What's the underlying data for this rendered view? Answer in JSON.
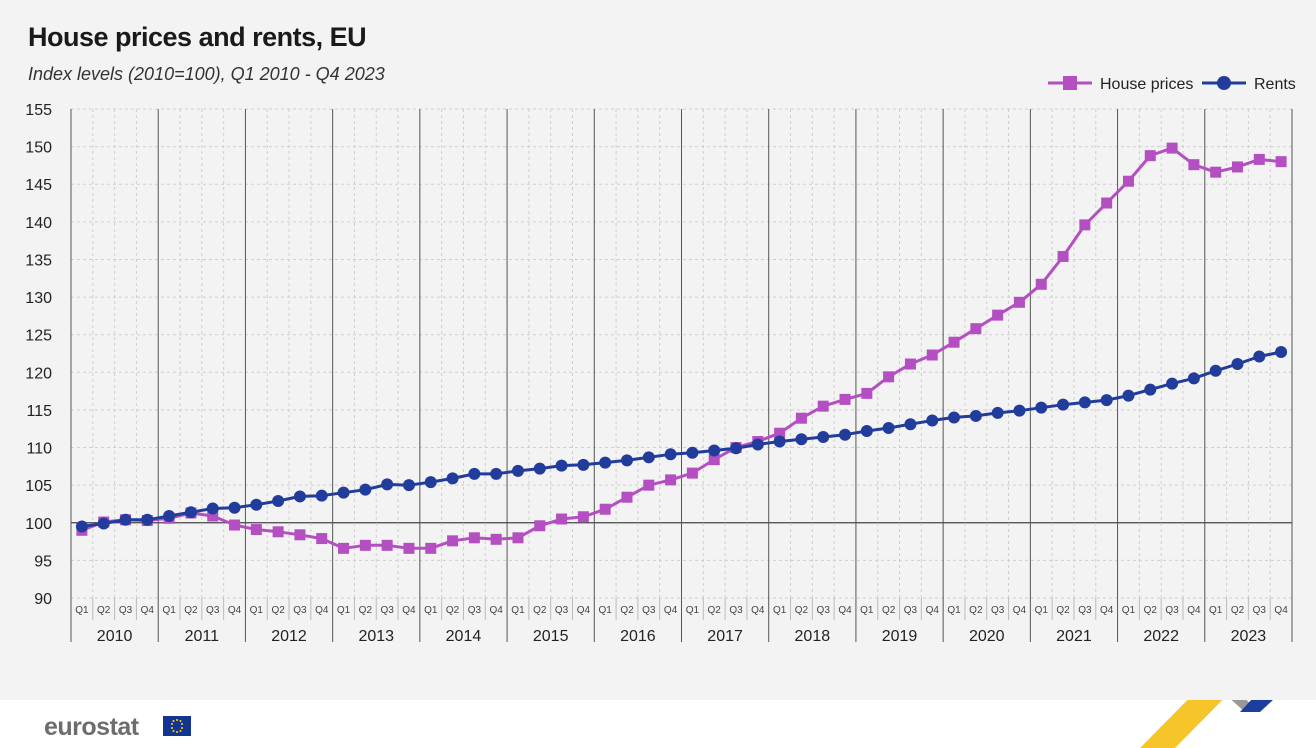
{
  "chart_data": {
    "type": "line",
    "title": "House prices and rents, EU",
    "subtitle": "Index levels (2010=100), Q1 2010 - Q4 2023",
    "ylim": [
      90,
      155
    ],
    "y_ticks": [
      "90",
      "95",
      "100",
      "105",
      "110",
      "115",
      "120",
      "125",
      "130",
      "135",
      "140",
      "145",
      "150",
      "155"
    ],
    "quarters": [
      "Q1",
      "Q2",
      "Q3",
      "Q4"
    ],
    "years": [
      "2010",
      "2011",
      "2012",
      "2013",
      "2014",
      "2015",
      "2016",
      "2017",
      "2018",
      "2019",
      "2020",
      "2021",
      "2022",
      "2023"
    ],
    "grid": true,
    "legend_position": "top-right",
    "series": [
      {
        "name": "House prices",
        "color": "#b44fc2",
        "marker": "square",
        "values": [
          99.0,
          100.1,
          100.4,
          100.3,
          100.6,
          101.3,
          100.9,
          99.7,
          99.1,
          98.8,
          98.4,
          97.9,
          96.6,
          97.0,
          97.0,
          96.6,
          96.6,
          97.6,
          98.0,
          97.8,
          98.0,
          99.6,
          100.5,
          100.8,
          101.8,
          103.4,
          105.0,
          105.7,
          106.6,
          108.4,
          110.0,
          110.8,
          111.9,
          113.9,
          115.5,
          116.4,
          117.2,
          119.4,
          121.1,
          122.3,
          124.0,
          125.8,
          127.6,
          129.3,
          131.7,
          135.4,
          139.6,
          142.5,
          145.4,
          148.8,
          149.8,
          147.6,
          146.6,
          147.3,
          148.3,
          148.0
        ]
      },
      {
        "name": "Rents",
        "color": "#213c9b",
        "marker": "circle",
        "values": [
          99.5,
          99.9,
          100.4,
          100.4,
          100.9,
          101.4,
          101.9,
          102.0,
          102.4,
          102.9,
          103.5,
          103.6,
          104.0,
          104.4,
          105.1,
          105.0,
          105.4,
          105.9,
          106.5,
          106.5,
          106.9,
          107.2,
          107.6,
          107.7,
          108.0,
          108.3,
          108.7,
          109.1,
          109.3,
          109.6,
          109.9,
          110.4,
          110.8,
          111.1,
          111.4,
          111.7,
          112.2,
          112.6,
          113.1,
          113.6,
          114.0,
          114.2,
          114.6,
          114.9,
          115.3,
          115.7,
          116.0,
          116.3,
          116.9,
          117.7,
          118.5,
          119.2,
          120.2,
          121.1,
          122.1,
          122.7
        ]
      }
    ]
  },
  "brand": {
    "logo_text": "eurostat"
  }
}
